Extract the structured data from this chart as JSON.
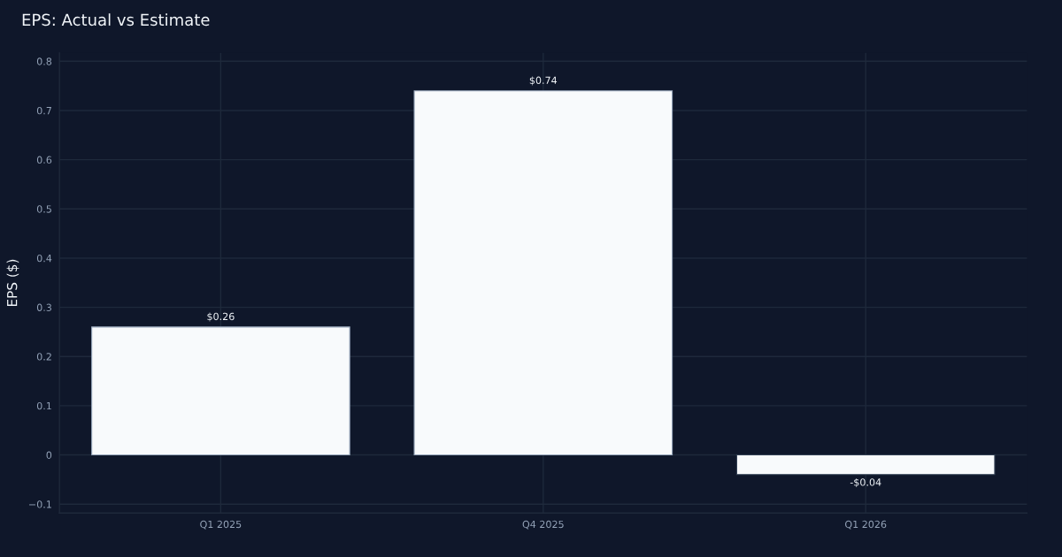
{
  "chart_data": {
    "type": "bar",
    "title": "EPS: Actual vs Estimate",
    "ylabel": "EPS ($)",
    "categories": [
      "Q1 2025",
      "Q4 2025",
      "Q1 2026"
    ],
    "values": [
      0.26,
      0.74,
      -0.04
    ],
    "value_labels": [
      "$0.26",
      "$0.74",
      "-$0.04"
    ],
    "color": "#f8fafc",
    "ylim": [
      -0.118,
      0.817
    ],
    "yticks": [
      {
        "value": -0.1,
        "label": "−0.1"
      },
      0,
      0.1,
      0.2,
      0.3,
      0.4,
      0.5,
      0.6,
      0.7,
      0.8
    ],
    "grid": true
  }
}
